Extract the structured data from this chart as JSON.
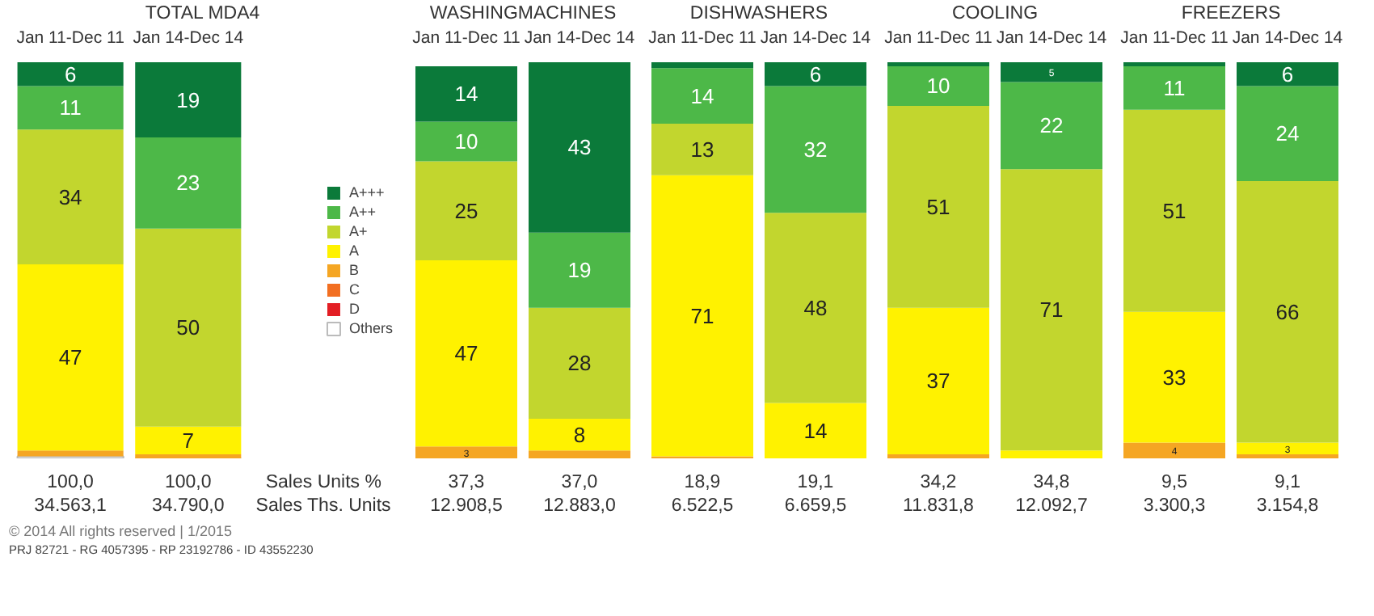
{
  "chart_data": [
    {
      "type": "bar",
      "stacked": true,
      "title": "TOTAL MDA4",
      "categories": [
        "Jan 11-Dec 11",
        "Jan 14-Dec 14"
      ],
      "ylim": [
        0,
        100
      ],
      "tick_labels": "x",
      "legend": "right",
      "grid": false,
      "series": [
        {
          "name": "Others",
          "color": "#ffffff",
          "values": [
            0.5,
            0
          ],
          "value_labels": [
            null,
            null
          ]
        },
        {
          "name": "D",
          "color": "#e31e24",
          "values": [
            0,
            0
          ],
          "value_labels": [
            null,
            null
          ]
        },
        {
          "name": "C",
          "color": "#f26f21",
          "values": [
            0,
            0
          ],
          "value_labels": [
            null,
            null
          ]
        },
        {
          "name": "B",
          "color": "#f5a623",
          "values": [
            1.5,
            1
          ],
          "value_labels": [
            null,
            null
          ]
        },
        {
          "name": "A",
          "color": "#fff200",
          "values": [
            47,
            7
          ],
          "value_labels": [
            "47",
            "7"
          ]
        },
        {
          "name": "A+",
          "color": "#c2d62e",
          "values": [
            34,
            50
          ],
          "value_labels": [
            "34",
            "50"
          ]
        },
        {
          "name": "A++",
          "color": "#4db848",
          "values": [
            11,
            23
          ],
          "value_labels": [
            "11",
            "23"
          ]
        },
        {
          "name": "A+++",
          "color": "#0b7a3a",
          "values": [
            6,
            19
          ],
          "value_labels": [
            "6",
            "19"
          ]
        }
      ],
      "annotations": [
        "100,0",
        "34.563,1",
        "100,0",
        "34.790,0",
        "Sales Units %",
        "Sales Ths. Units",
        "© 2014  All rights reserved | 1/2015",
        "PRJ 82721 - RG 4057395 - RP 23192786 - ID 43552230"
      ]
    },
    {
      "type": "bar",
      "stacked": true,
      "title": "WASHINGMACHINES",
      "categories": [
        "Jan 11-Dec 11",
        "Jan 14-Dec 14"
      ],
      "ylim": [
        0,
        100
      ],
      "tick_labels": "x",
      "grid": false,
      "series": [
        {
          "color": "#f5a623",
          "values": [
            3,
            2
          ],
          "value_labels": [
            "3",
            null
          ]
        },
        {
          "color": "#fff200",
          "values": [
            47,
            8
          ],
          "value_labels": [
            "47",
            "8"
          ]
        },
        {
          "color": "#c2d62e",
          "values": [
            25,
            28
          ],
          "value_labels": [
            "25",
            "28"
          ]
        },
        {
          "color": "#4db848",
          "values": [
            10,
            19
          ],
          "value_labels": [
            "10",
            "19"
          ]
        },
        {
          "color": "#0b7a3a",
          "values": [
            14,
            43
          ],
          "value_labels": [
            "14",
            "43"
          ]
        }
      ],
      "annotations": [
        "37,3",
        "12.908,5",
        "37,0",
        "12.883,0"
      ]
    },
    {
      "type": "bar",
      "stacked": true,
      "title": "DISHWASHERS",
      "categories": [
        "Jan 11-Dec 11",
        "Jan 14-Dec 14"
      ],
      "ylim": [
        0,
        100
      ],
      "tick_labels": "x",
      "grid": false,
      "series": [
        {
          "color": "#f5a623",
          "values": [
            0.5,
            0
          ],
          "value_labels": [
            null,
            null
          ]
        },
        {
          "color": "#fff200",
          "values": [
            71,
            14
          ],
          "value_labels": [
            "71",
            "14"
          ]
        },
        {
          "color": "#c2d62e",
          "values": [
            13,
            48
          ],
          "value_labels": [
            "13",
            "48"
          ]
        },
        {
          "color": "#4db848",
          "values": [
            14,
            32
          ],
          "value_labels": [
            "14",
            "32"
          ]
        },
        {
          "color": "#0b7a3a",
          "values": [
            1.5,
            6
          ],
          "value_labels": [
            null,
            "6"
          ]
        }
      ],
      "annotations": [
        "18,9",
        "6.522,5",
        "19,1",
        "6.659,5"
      ]
    },
    {
      "type": "bar",
      "stacked": true,
      "title": "COOLING",
      "categories": [
        "Jan 11-Dec 11",
        "Jan 14-Dec 14"
      ],
      "ylim": [
        0,
        100
      ],
      "tick_labels": "x",
      "grid": false,
      "series": [
        {
          "color": "#f5a623",
          "values": [
            1,
            0
          ],
          "value_labels": [
            null,
            null
          ]
        },
        {
          "color": "#fff200",
          "values": [
            37,
            2
          ],
          "value_labels": [
            "37",
            null
          ]
        },
        {
          "color": "#c2d62e",
          "values": [
            51,
            71
          ],
          "value_labels": [
            "51",
            "71"
          ]
        },
        {
          "color": "#4db848",
          "values": [
            10,
            22
          ],
          "value_labels": [
            "10",
            "22"
          ]
        },
        {
          "color": "#0b7a3a",
          "values": [
            1,
            5
          ],
          "value_labels": [
            null,
            "5"
          ]
        }
      ],
      "annotations": [
        "34,2",
        "11.831,8",
        "34,8",
        "12.092,7"
      ]
    },
    {
      "type": "bar",
      "stacked": true,
      "title": "FREEZERS",
      "categories": [
        "Jan 11-Dec 11",
        "Jan 14-Dec 14"
      ],
      "ylim": [
        0,
        100
      ],
      "tick_labels": "x",
      "grid": false,
      "series": [
        {
          "color": "#f5a623",
          "values": [
            4,
            1
          ],
          "value_labels": [
            "4",
            null
          ]
        },
        {
          "color": "#fff200",
          "values": [
            33,
            3
          ],
          "value_labels": [
            "33",
            "3"
          ]
        },
        {
          "color": "#c2d62e",
          "values": [
            51,
            66
          ],
          "value_labels": [
            "51",
            "66"
          ]
        },
        {
          "color": "#4db848",
          "values": [
            11,
            24
          ],
          "value_labels": [
            "11",
            "24"
          ]
        },
        {
          "color": "#0b7a3a",
          "values": [
            1,
            6
          ],
          "value_labels": [
            null,
            "6"
          ]
        }
      ],
      "annotations": [
        "9,5",
        "3.300,3",
        "9,1",
        "3.154,8"
      ]
    }
  ]
}
